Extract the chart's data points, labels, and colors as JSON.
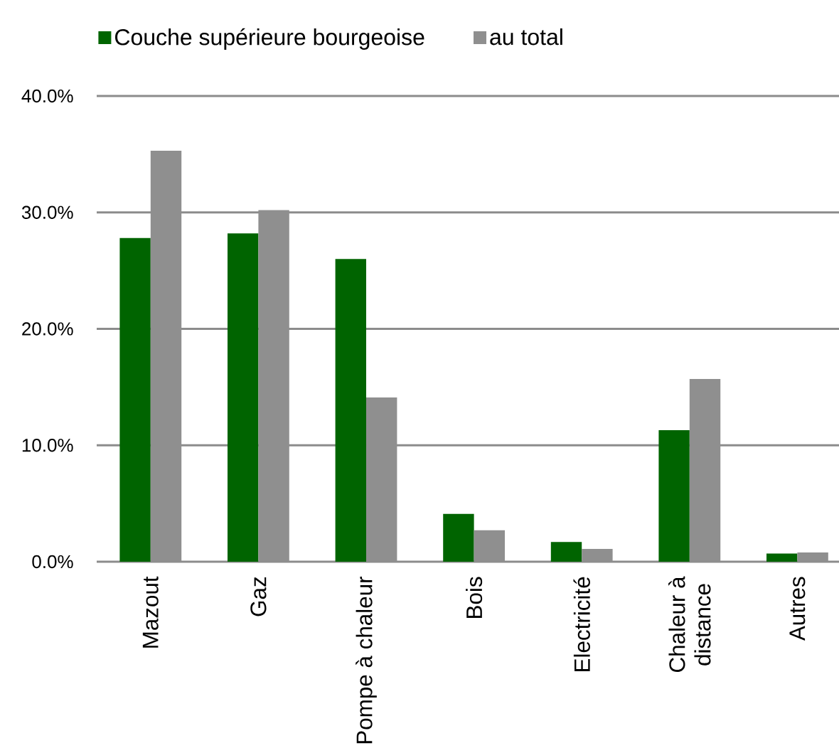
{
  "chart_data": {
    "type": "bar",
    "categories": [
      "Mazout",
      "Gaz",
      "Pompe à chaleur",
      "Bois",
      "Electricité",
      "Chaleur à distance",
      "Autres"
    ],
    "series": [
      {
        "name": "Couche supérieure bourgeoise",
        "color": "#006400",
        "values": [
          27.8,
          28.2,
          26.0,
          4.1,
          1.7,
          11.3,
          0.7
        ]
      },
      {
        "name": "au total",
        "color": "#8f8f8f",
        "values": [
          35.3,
          30.2,
          14.1,
          2.7,
          1.1,
          15.7,
          0.8
        ]
      }
    ],
    "ylim": [
      0,
      40
    ],
    "yticks": [
      {
        "value": 0,
        "label": "0.0%"
      },
      {
        "value": 10,
        "label": "10.0%"
      },
      {
        "value": 20,
        "label": "20.0%"
      },
      {
        "value": 30,
        "label": "30.0%"
      },
      {
        "value": 40,
        "label": "40.0%"
      }
    ],
    "grid": "y",
    "legend": "top left"
  }
}
